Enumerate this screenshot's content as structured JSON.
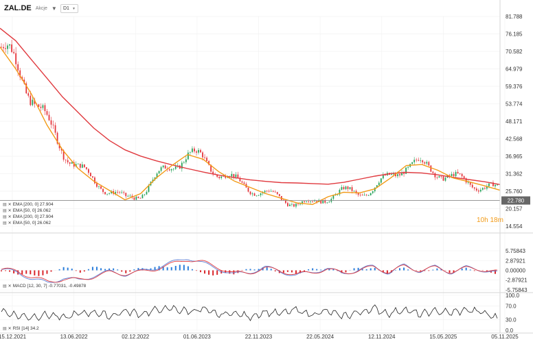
{
  "header": {
    "symbol": "ZAL.DE",
    "subtitle": "Akcje",
    "timeframe": "D1"
  },
  "colors": {
    "price_up": "#27a35a",
    "price_down": "#e5343a",
    "ema200": "#e0393e",
    "ema50": "#f29a16",
    "macd_line": "#5b7fd6",
    "macd_signal": "#e0393e",
    "hist_pos": "#2a7ddb",
    "hist_neg": "#d9262b",
    "rsi": "#222222",
    "price_label_bg": "#666666"
  },
  "legends": {
    "main": [
      {
        "icon": "chart-settings-icon",
        "text": "EMA [200, 0] 27.904"
      },
      {
        "icon": "chart-settings-icon",
        "text": "EMA [50, 0] 26.062"
      },
      {
        "icon": "chart-settings-icon",
        "text": "EMA [200, 0] 27.904"
      },
      {
        "icon": "chart-settings-icon",
        "text": "EMA [50, 0] 26.062"
      }
    ],
    "macd": "MACD [12, 30, 7] -0.77031, -0.49878",
    "rsi": "RSI [14] 34.2"
  },
  "countdown": "10h 18m",
  "current_price_label": "22.780",
  "chart_data": [
    {
      "type": "line",
      "panel": "price",
      "y_ticks": [
        "81.788",
        "76.185",
        "70.582",
        "64.979",
        "59.376",
        "53.774",
        "48.171",
        "42.568",
        "36.965",
        "31.362",
        "25.760",
        "20.157",
        "14.554"
      ],
      "ylim": [
        14.554,
        81.788
      ],
      "x_tick_labels": [
        "15.12.2021",
        "13.06.2022",
        "02.12.2022",
        "01.06.2023",
        "22.11.2023",
        "22.05.2024",
        "12.11.2024",
        "15.05.2025",
        "05.11.2025"
      ],
      "current_price": 22.78,
      "series": [
        {
          "name": "EMA [200, 0]",
          "values": [
            78,
            74,
            68,
            62,
            56,
            51,
            46,
            42,
            39,
            37,
            35.5,
            34.2,
            33,
            31.9,
            30.9,
            30.1,
            29.4,
            28.9,
            28.5,
            28.4,
            28.2,
            28.0,
            28.6,
            29.6,
            30.6,
            31.4,
            31.8,
            31.6,
            31.0,
            30.2,
            29.5,
            28.8,
            27.9
          ]
        },
        {
          "name": "EMA [50, 0]",
          "values": [
            72,
            65,
            57,
            47,
            39,
            33,
            29,
            26,
            23,
            25,
            30,
            34,
            37.5,
            36,
            32,
            29,
            27,
            25,
            23.5,
            22,
            21.5,
            24,
            25.4,
            25.2,
            26.5,
            30,
            34,
            34.3,
            32.5,
            30,
            28.8,
            27.5,
            26.062
          ]
        }
      ]
    },
    {
      "type": "line",
      "panel": "macd",
      "title": "MACD [12, 30, 7]",
      "y_ticks": [
        "5.75843",
        "2.87921",
        "0.00000",
        "-2.87921",
        "-5.75843"
      ],
      "ylim": [
        -5.75843,
        5.75843
      ],
      "series": [
        {
          "name": "MACD",
          "values": [
            0.2,
            -0.5,
            -2.5,
            -3.8,
            -2.2,
            -3.0,
            -1.5,
            -0.4,
            -1.2,
            -0.3,
            0.8,
            2.2,
            3.8,
            2.0,
            0.5,
            -1.2,
            -0.6,
            0.9,
            -0.3,
            -1.5,
            -0.6,
            0.6,
            -1.0,
            0.1,
            1.2,
            -0.8,
            1.5,
            -0.2,
            1.0,
            -0.6,
            0.8,
            0.2,
            -0.77031
          ]
        },
        {
          "name": "Signal",
          "values": [
            0.3,
            -0.2,
            -2.0,
            -3.4,
            -2.6,
            -2.8,
            -1.8,
            -0.6,
            -1.0,
            -0.5,
            0.5,
            1.8,
            3.3,
            2.4,
            0.9,
            -0.9,
            -0.7,
            0.6,
            -0.1,
            -1.2,
            -0.7,
            0.4,
            -0.8,
            -0.1,
            1.0,
            -0.5,
            1.2,
            0.0,
            0.8,
            -0.4,
            0.6,
            0.3,
            -0.49878
          ]
        }
      ]
    },
    {
      "type": "line",
      "panel": "rsi",
      "title": "RSI [14]",
      "y_ticks": [
        "100.0",
        "70.0",
        "30.0",
        "0.0"
      ],
      "ylim": [
        0,
        100
      ],
      "series": [
        {
          "name": "RSI",
          "values": [
            55,
            42,
            38,
            45,
            35,
            48,
            52,
            40,
            55,
            46,
            58,
            62,
            54,
            60,
            44,
            50,
            38,
            52,
            48,
            58,
            45,
            55,
            40,
            50,
            62,
            48,
            60,
            45,
            55,
            50,
            58,
            52,
            34.2
          ]
        }
      ]
    }
  ]
}
